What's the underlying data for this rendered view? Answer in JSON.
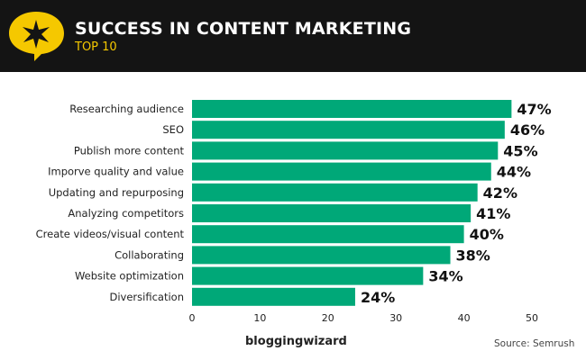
{
  "header": {
    "title": "SUCCESS IN CONTENT MARKETING",
    "subtitle": "TOP 10"
  },
  "colors": {
    "bar": "#00a878",
    "header_bg": "#141414",
    "accent": "#f5c800"
  },
  "chart_data": {
    "type": "bar",
    "orientation": "horizontal",
    "title": "SUCCESS IN CONTENT MARKETING",
    "subtitle": "TOP 10",
    "categories": [
      "Researching audience",
      "SEO",
      "Publish more content",
      "Imporve quality and value",
      "Updating and repurposing",
      "Analyzing competitors",
      "Create videos/visual content",
      "Collaborating",
      "Website optimization",
      "Diversification"
    ],
    "values": [
      47,
      46,
      45,
      44,
      42,
      41,
      40,
      38,
      34,
      24
    ],
    "value_labels": [
      "47%",
      "46%",
      "45%",
      "44%",
      "42%",
      "41%",
      "40%",
      "38%",
      "34%",
      "24%"
    ],
    "xlim": [
      0,
      50
    ],
    "xticks": [
      "0",
      "10",
      "20",
      "30",
      "40",
      "50"
    ],
    "grid": false
  },
  "footer": {
    "brand": "bloggingwizard",
    "source": "Source: Semrush"
  }
}
